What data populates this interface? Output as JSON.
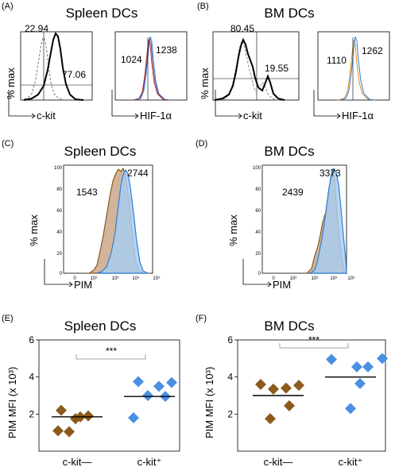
{
  "panels": {
    "A": {
      "label": "(A)",
      "title": "Spleen DCs",
      "left": {
        "ylabel": "% max",
        "xlabel": "c-kit",
        "gate_low": "22.94",
        "gate_high": "77.06"
      },
      "right": {
        "xlabel": "HIF-1α",
        "mfi_left": "1024",
        "mfi_right": "1238"
      }
    },
    "B": {
      "label": "(B)",
      "title": "BM DCs",
      "left": {
        "ylabel": "% max",
        "xlabel": "c-kit",
        "gate_low": "80.45",
        "gate_high": "19.55"
      },
      "right": {
        "xlabel": "HIF-1α",
        "mfi_left": "1110",
        "mfi_right": "1262"
      }
    },
    "C": {
      "label": "(C)",
      "title": "Spleen DCs",
      "ylabel": "% max",
      "xlabel": "PIM",
      "mfi_left": "1543",
      "mfi_right": "2744",
      "yticks": [
        "100",
        "80",
        "60",
        "40",
        "20",
        "0"
      ],
      "xticks": [
        "0",
        "10²",
        "10³",
        "10⁴",
        "10⁵"
      ]
    },
    "D": {
      "label": "(D)",
      "title": "BM DCs",
      "ylabel": "% max",
      "xlabel": "PIM",
      "mfi_left": "2439",
      "mfi_right": "3373",
      "yticks": [
        "100",
        "80",
        "60",
        "40",
        "20",
        "0"
      ],
      "xticks": [
        "0",
        "10²",
        "10³",
        "10⁴",
        "10⁵"
      ]
    },
    "E": {
      "label": "(E)",
      "title": "Spleen DCs",
      "ylabel": "PIM MFI (x 10³)",
      "sig": "***",
      "xcats": [
        "c-kit—",
        "c-kit⁺"
      ]
    },
    "F": {
      "label": "(F)",
      "title": "BM DCs",
      "ylabel": "PIM MFI (x 10³)",
      "sig": "***",
      "xcats": [
        "c-kit—",
        "c-kit⁺"
      ]
    }
  },
  "colors": {
    "brown": "#8b5a1c",
    "brown_fill": "#d2b49a",
    "blue": "#2f7fd8",
    "blue_fill": "#a9cdef",
    "diamond_blue": "#4a90e2",
    "red": "#c0392b"
  },
  "chart_data": [
    {
      "type": "scatter",
      "panel": "E",
      "categories": [
        "c-kit—",
        "c-kit⁺"
      ],
      "ylim": [
        0,
        6
      ],
      "yticks": [
        2,
        4,
        6
      ],
      "series": [
        {
          "values": [
            2.2,
            1.75,
            1.9,
            1.05,
            1.85,
            1.1
          ]
        },
        {
          "values": [
            3.75,
            3.5,
            3.7,
            3.0,
            1.8,
            2.95
          ]
        }
      ],
      "means": [
        1.85,
        2.95
      ]
    },
    {
      "type": "scatter",
      "panel": "F",
      "categories": [
        "c-kit—",
        "c-kit⁺"
      ],
      "ylim": [
        0,
        6
      ],
      "yticks": [
        2,
        4,
        6
      ],
      "series": [
        {
          "values": [
            3.6,
            3.35,
            3.4,
            3.55,
            1.75,
            2.45
          ]
        },
        {
          "values": [
            4.95,
            4.55,
            4.55,
            5.0,
            3.65,
            2.3
          ]
        }
      ],
      "means": [
        3.0,
        4.0
      ]
    }
  ]
}
